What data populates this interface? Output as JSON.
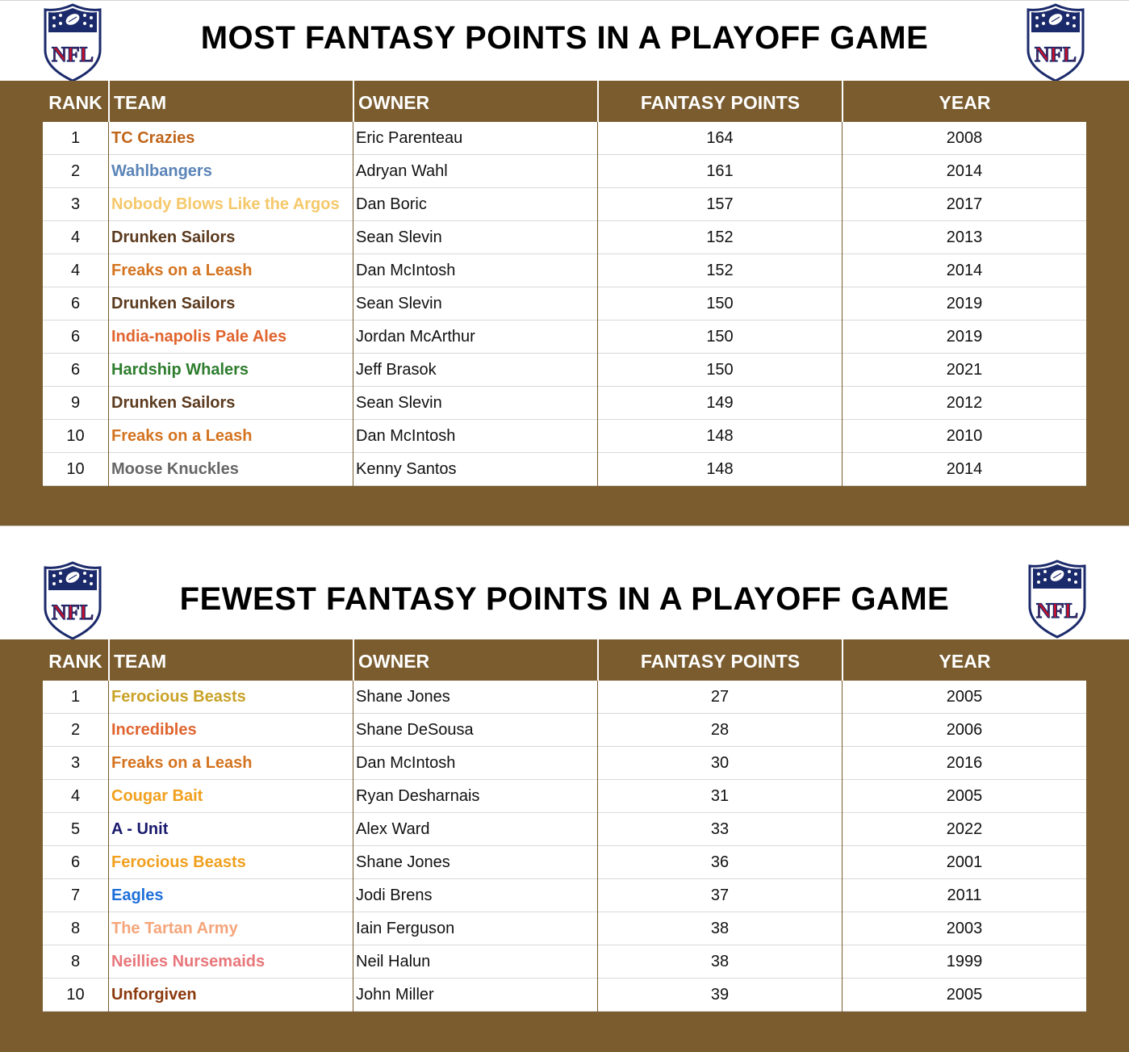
{
  "colors": {
    "panel_brown": "#7a5c2e",
    "header_text": "#ffffff",
    "row_text": "#111111"
  },
  "logo": {
    "icon": "nfl-shield-icon",
    "text": "NFL"
  },
  "most": {
    "title": "MOST FANTASY POINTS IN A PLAYOFF GAME",
    "headers": {
      "rank": "RANK",
      "team": "TEAM",
      "owner": "OWNER",
      "points": "FANTASY POINTS",
      "year": "YEAR"
    },
    "rows": [
      {
        "rank": "1",
        "team": "TC Crazies",
        "team_color": "#c0651a",
        "owner": "Eric Parenteau",
        "points": "164",
        "year": "2008"
      },
      {
        "rank": "2",
        "team": "Wahlbangers",
        "team_color": "#5b84b8",
        "owner": "Adryan Wahl",
        "points": "161",
        "year": "2014"
      },
      {
        "rank": "3",
        "team": "Nobody Blows Like the Argos",
        "team_color": "#f5c86a",
        "owner": "Dan Boric",
        "points": "157",
        "year": "2017"
      },
      {
        "rank": "4",
        "team": "Drunken Sailors",
        "team_color": "#5b3a1e",
        "owner": "Sean Slevin",
        "points": "152",
        "year": "2013"
      },
      {
        "rank": "4",
        "team": "Freaks on a Leash",
        "team_color": "#d4731f",
        "owner": "Dan McIntosh",
        "points": "152",
        "year": "2014"
      },
      {
        "rank": "6",
        "team": "Drunken Sailors",
        "team_color": "#5b3a1e",
        "owner": "Sean Slevin",
        "points": "150",
        "year": "2019"
      },
      {
        "rank": "6",
        "team": "India-napolis Pale Ales",
        "team_color": "#e0642e",
        "owner": "Jordan McArthur",
        "points": "150",
        "year": "2019"
      },
      {
        "rank": "6",
        "team": "Hardship Whalers",
        "team_color": "#2e7d2e",
        "owner": "Jeff Brasok",
        "points": "150",
        "year": "2021"
      },
      {
        "rank": "9",
        "team": "Drunken Sailors",
        "team_color": "#5b3a1e",
        "owner": "Sean Slevin",
        "points": "149",
        "year": "2012"
      },
      {
        "rank": "10",
        "team": "Freaks on a Leash",
        "team_color": "#d4731f",
        "owner": "Dan McIntosh",
        "points": "148",
        "year": "2010"
      },
      {
        "rank": "10",
        "team": "Moose Knuckles",
        "team_color": "#666666",
        "owner": "Kenny Santos",
        "points": "148",
        "year": "2014"
      }
    ]
  },
  "fewest": {
    "title": "FEWEST FANTASY POINTS IN A PLAYOFF GAME",
    "headers": {
      "rank": "RANK",
      "team": "TEAM",
      "owner": "OWNER",
      "points": "FANTASY POINTS",
      "year": "YEAR"
    },
    "rows": [
      {
        "rank": "1",
        "team": "Ferocious Beasts",
        "team_color": "#c9a227",
        "owner": "Shane Jones",
        "points": "27",
        "year": "2005"
      },
      {
        "rank": "2",
        "team": "Incredibles",
        "team_color": "#e0642e",
        "owner": "Shane DeSousa",
        "points": "28",
        "year": "2006"
      },
      {
        "rank": "3",
        "team": "Freaks on a Leash",
        "team_color": "#d4731f",
        "owner": "Dan McIntosh",
        "points": "30",
        "year": "2016"
      },
      {
        "rank": "4",
        "team": "Cougar Bait",
        "team_color": "#f0a01e",
        "owner": "Ryan Desharnais",
        "points": "31",
        "year": "2005"
      },
      {
        "rank": "5",
        "team": "A - Unit",
        "team_color": "#1a1a6e",
        "owner": "Alex Ward",
        "points": "33",
        "year": "2022"
      },
      {
        "rank": "6",
        "team": "Ferocious Beasts",
        "team_color": "#f0a01e",
        "owner": "Shane Jones",
        "points": "36",
        "year": "2001"
      },
      {
        "rank": "7",
        "team": "Eagles",
        "team_color": "#1e6fd9",
        "owner": "Jodi Brens",
        "points": "37",
        "year": "2011"
      },
      {
        "rank": "8",
        "team": "The Tartan Army",
        "team_color": "#f4a57a",
        "owner": "Iain Ferguson",
        "points": "38",
        "year": "2003"
      },
      {
        "rank": "8",
        "team": "Neillies Nursemaids",
        "team_color": "#e8767a",
        "owner": "Neil Halun",
        "points": "38",
        "year": "1999"
      },
      {
        "rank": "10",
        "team": "Unforgiven",
        "team_color": "#8b3a0e",
        "owner": "John Miller",
        "points": "39",
        "year": "2005"
      }
    ]
  }
}
